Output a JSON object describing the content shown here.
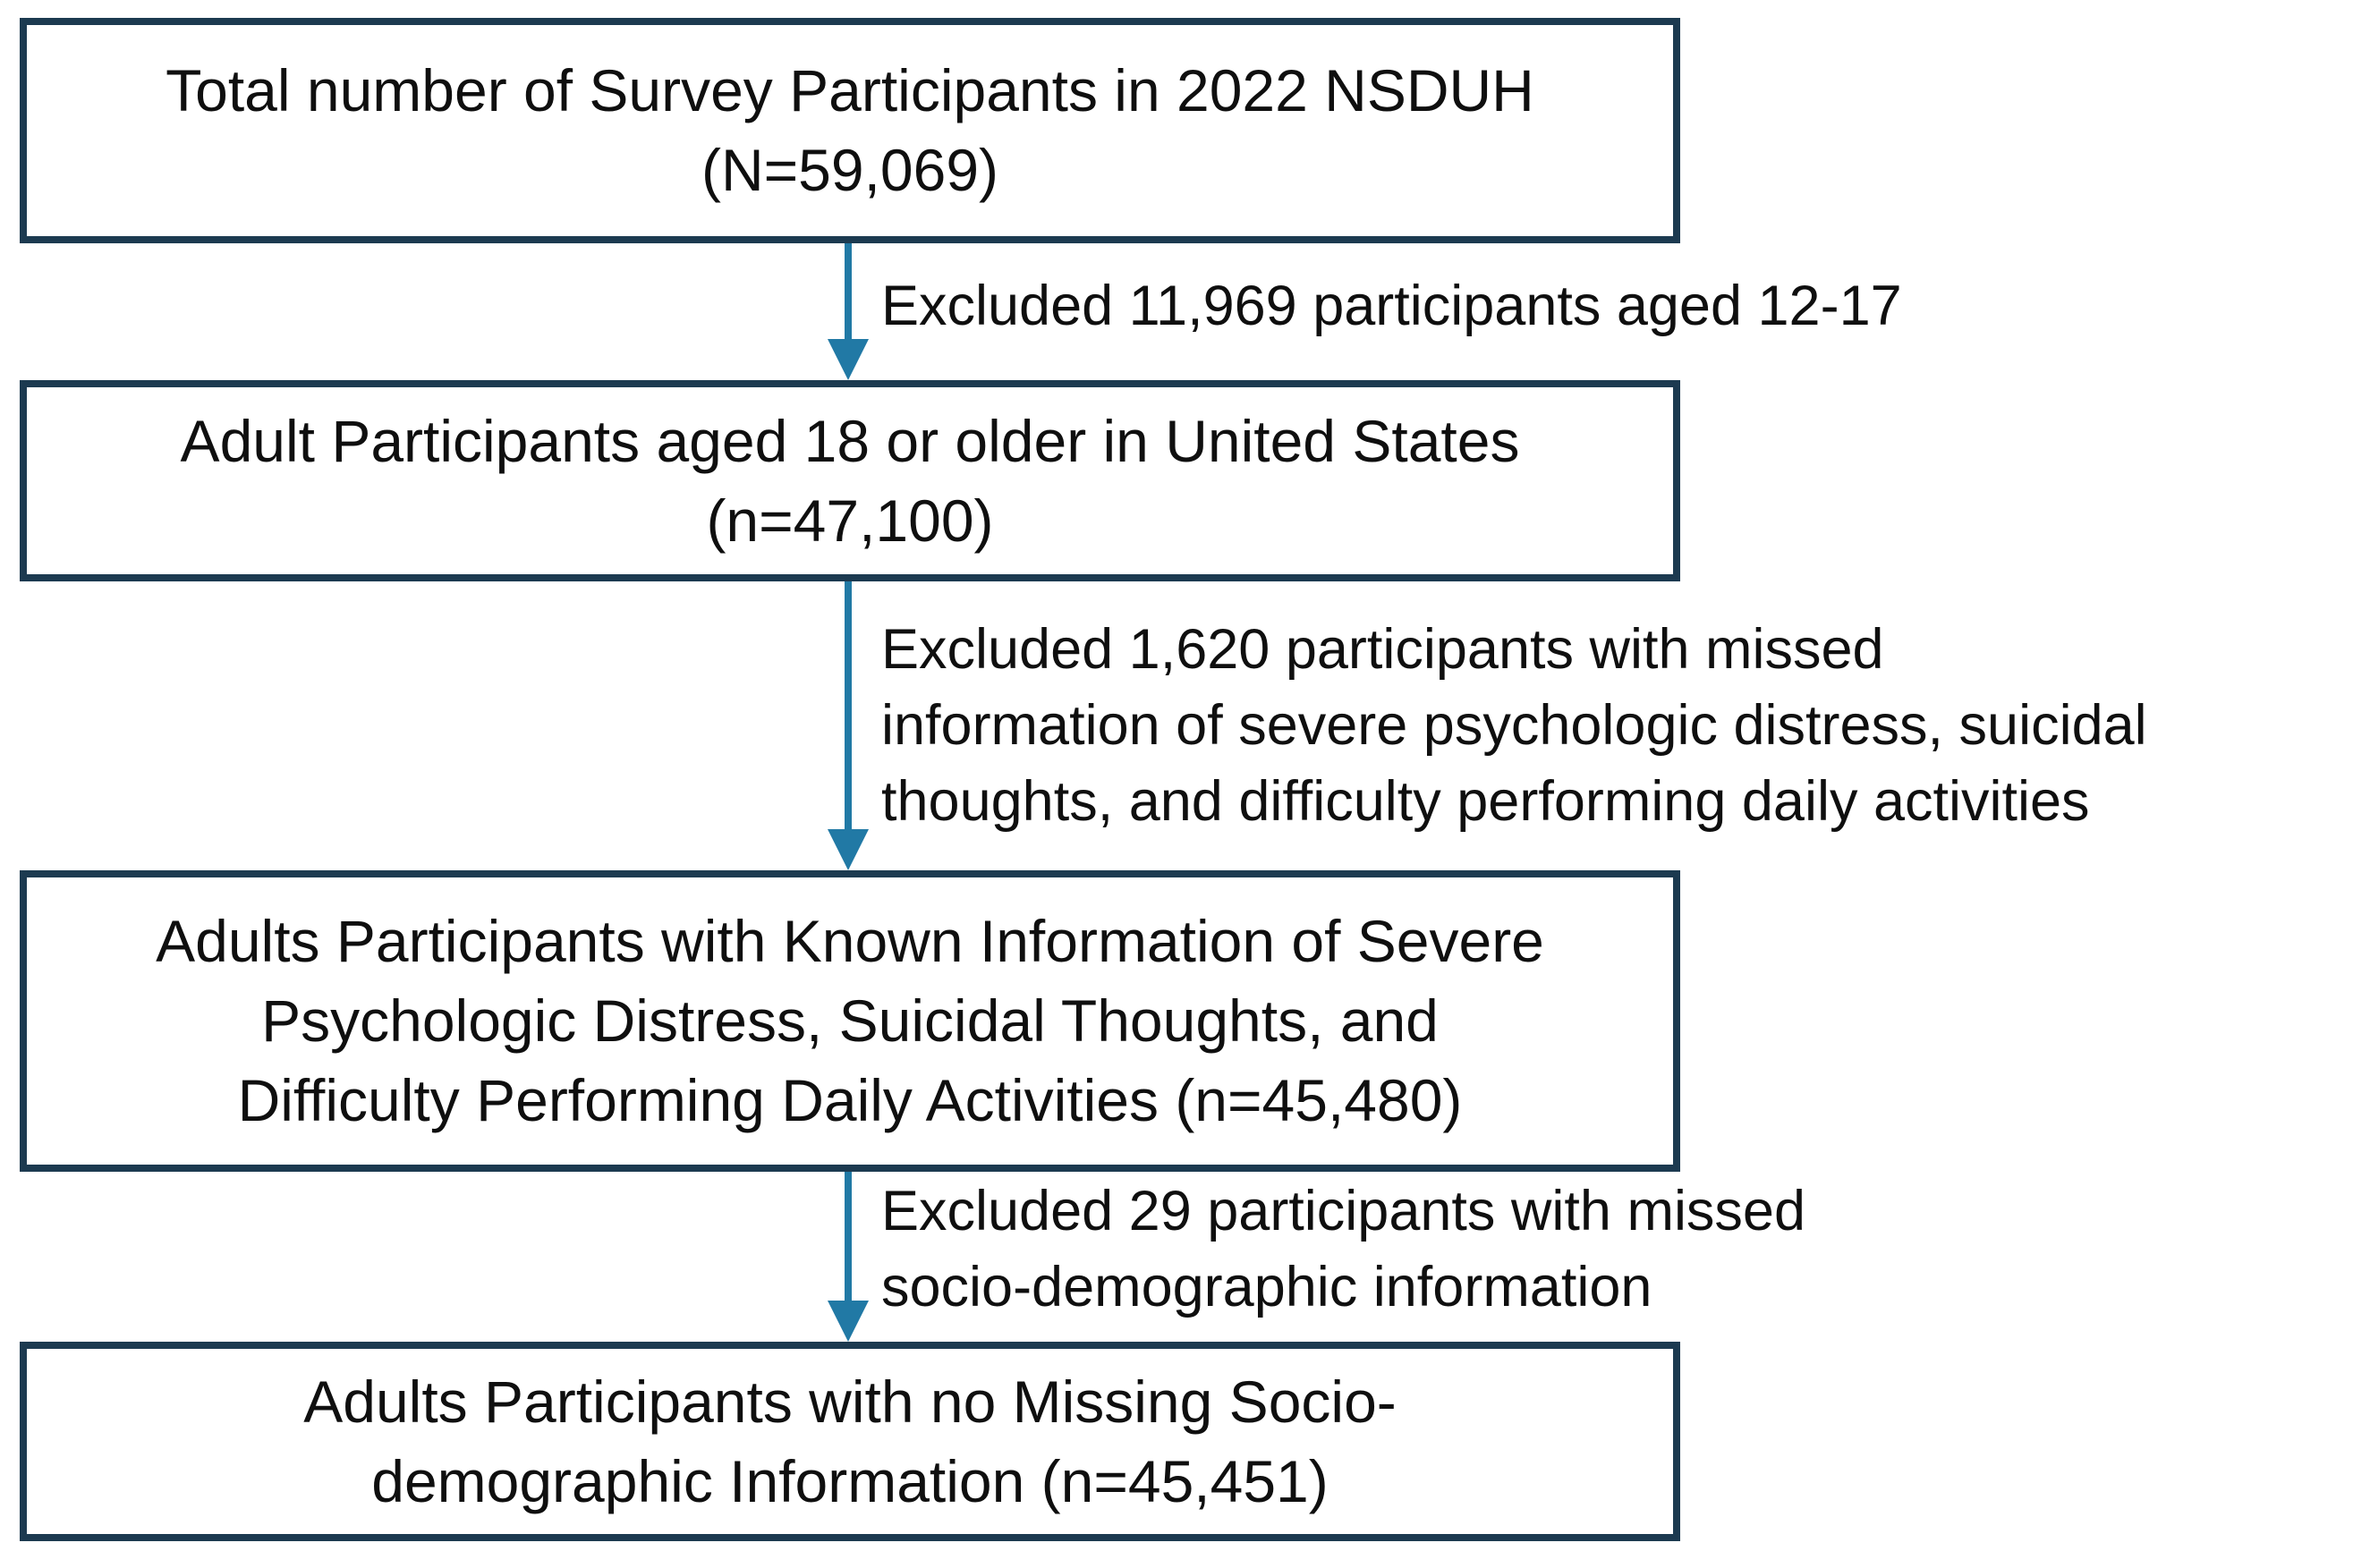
{
  "diagram": {
    "description": "Participant selection flowchart, 2022 NSDUH survey",
    "colors": {
      "box_border": "#1c3a50",
      "arrow": "#2179a5",
      "text": "#0f0f0f",
      "background": "#ffffff"
    },
    "boxes": [
      {
        "id": "total-participants",
        "lines": [
          "Total number of Survey Participants in 2022 NSDUH",
          "(N=59,069)"
        ]
      },
      {
        "id": "adult-participants",
        "lines": [
          "Adult Participants aged 18 or older in United States",
          "(n=47,100)"
        ]
      },
      {
        "id": "known-information-participants",
        "lines": [
          "Adults Participants with Known Information of Severe",
          "Psychologic Distress, Suicidal Thoughts, and",
          "Difficulty Performing Daily Activities (n=45,480)"
        ]
      },
      {
        "id": "no-missing-sociodemographic-participants",
        "lines": [
          "Adults Participants with no Missing Socio-",
          "demographic Information (n=45,451)"
        ]
      }
    ],
    "exclusions": [
      {
        "id": "exclusion-aged-12-17",
        "lines": [
          "Excluded 11,969 participants aged 12-17"
        ]
      },
      {
        "id": "exclusion-missed-distress-info",
        "lines": [
          "Excluded 1,620 participants with missed",
          "information of severe psychologic distress, suicidal",
          "thoughts, and difficulty performing daily activities"
        ]
      },
      {
        "id": "exclusion-missed-sociodemographic",
        "lines": [
          "Excluded 29 participants with missed",
          "socio-demographic information"
        ]
      }
    ]
  }
}
